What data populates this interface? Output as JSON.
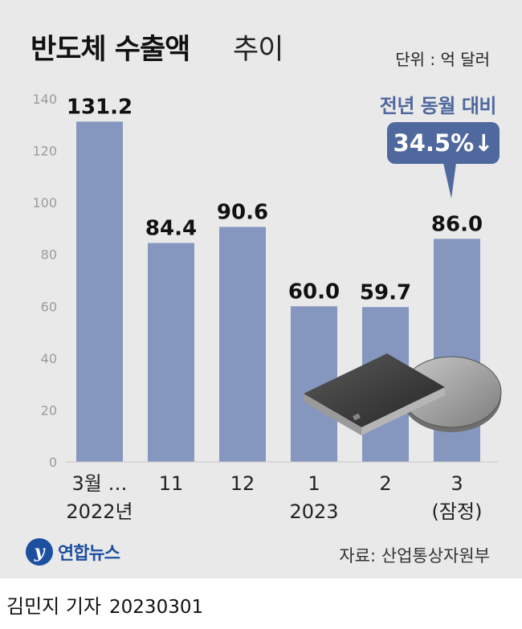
{
  "title": {
    "bold": "반도체 수출액",
    "light": "추이"
  },
  "unit": "단위 : 억 달러",
  "callout": {
    "title": "전년 동월 대비",
    "value": "34.5%↓"
  },
  "source": "자료: 산업통상자원부",
  "logo": {
    "mark": "y",
    "text": "연합뉴스"
  },
  "byline": {
    "name": "김민지 기자",
    "date": "20230301"
  },
  "colors": {
    "bar": "#8597bf",
    "accent": "#4f689e",
    "background": "#e9e9e9"
  },
  "chart_data": {
    "type": "bar",
    "categories": [
      "3월 …",
      "11",
      "12",
      "1",
      "2",
      "3"
    ],
    "category_sublabels": [
      "2022년",
      "",
      "",
      "2023",
      "",
      "(잠정)"
    ],
    "values": [
      131.2,
      84.4,
      90.6,
      60.0,
      59.7,
      86.0
    ],
    "value_labels": [
      "131.2",
      "84.4",
      "90.6",
      "60.0",
      "59.7",
      "86.0"
    ],
    "yticks": [
      "0",
      "20",
      "40",
      "60",
      "80",
      "100",
      "120",
      "140"
    ],
    "ylim": [
      0,
      140
    ],
    "grid": false
  }
}
